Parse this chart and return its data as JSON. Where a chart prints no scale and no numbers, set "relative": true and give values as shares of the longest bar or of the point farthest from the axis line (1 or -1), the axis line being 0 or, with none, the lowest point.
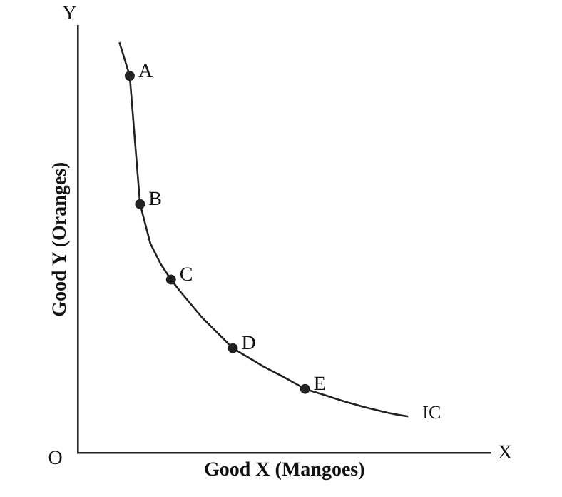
{
  "chart_data": {
    "type": "line",
    "relative": true,
    "grid": false,
    "legend": false,
    "xlabel": "Good X (Mangoes)",
    "ylabel": "Good Y (Oranges)",
    "categories": [
      null,
      null,
      null,
      null,
      null,
      null,
      null,
      null,
      null,
      null,
      null,
      null,
      null,
      null,
      null,
      null,
      null,
      null,
      null,
      null,
      null,
      null,
      null,
      null,
      null,
      null,
      null,
      null,
      null,
      null,
      null,
      null,
      null,
      null,
      null,
      null,
      null,
      null,
      null,
      null,
      null
    ],
    "series": [
      {
        "name": "IC",
        "color": "#222222",
        "values": [
          null,
          null,
          null,
          null,
          1,
          0.918,
          0.606,
          0.51,
          0.46,
          0.422,
          0.39,
          0.36,
          0.33,
          0.305,
          0.28,
          0.255,
          0.24,
          0.225,
          0.21,
          0.197,
          0.184,
          0.17,
          0.156,
          0.148,
          0.14,
          0.132,
          0.124,
          0.117,
          0.11,
          0.104,
          0.098,
          0.093,
          0.089,
          null,
          null,
          null,
          null,
          null,
          null,
          null,
          null
        ]
      }
    ],
    "annotations": [
      "X",
      "Y",
      "O",
      "A",
      "B",
      "C",
      "D",
      "E"
    ]
  }
}
